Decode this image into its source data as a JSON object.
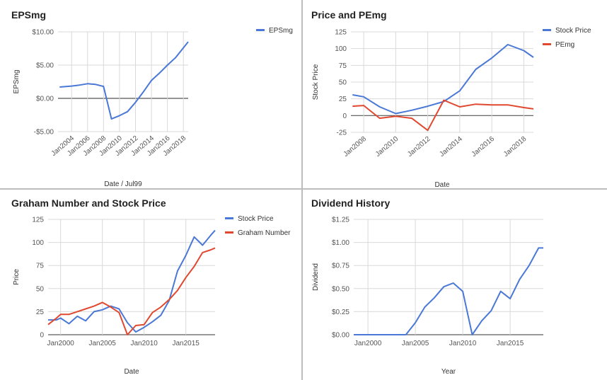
{
  "colors": {
    "blue": "#4a78d6",
    "red": "#e0482f",
    "grid": "#d9d9d9",
    "zero": "#555555"
  },
  "chart_data": [
    {
      "id": "eps",
      "type": "line",
      "title": "EPSmg",
      "xlabel": "Date / Jul99",
      "ylabel": "EPSmg",
      "xlim": [
        2002.3,
        2018.6
      ],
      "ylim": [
        -5,
        10
      ],
      "yticks": [
        {
          "v": 10,
          "label": "$10.00"
        },
        {
          "v": 5,
          "label": "$5.00"
        },
        {
          "v": 0,
          "label": "$0.00"
        },
        {
          "v": -5,
          "label": "-$5.00"
        }
      ],
      "xticks": [
        {
          "v": 2004,
          "label": "Jan2004"
        },
        {
          "v": 2006,
          "label": "Jan2006"
        },
        {
          "v": 2008,
          "label": "Jan2008"
        },
        {
          "v": 2010,
          "label": "Jan2010"
        },
        {
          "v": 2012,
          "label": "Jan2012"
        },
        {
          "v": 2014,
          "label": "Jan2014"
        },
        {
          "v": 2016,
          "label": "Jan2016"
        },
        {
          "v": 2018,
          "label": "Jan2018"
        }
      ],
      "tick_rotate": true,
      "zero_line": true,
      "legend": "right",
      "series": [
        {
          "name": "EPSmg",
          "color": "#4a78d6",
          "x": [
            2002.5,
            2004,
            2005,
            2006,
            2007,
            2008,
            2009,
            2010,
            2011,
            2012,
            2013,
            2014,
            2015,
            2016,
            2017,
            2018,
            2018.6
          ],
          "y": [
            1.7,
            1.85,
            2.0,
            2.2,
            2.1,
            1.8,
            -3.1,
            -2.6,
            -2.0,
            -0.6,
            1.0,
            2.7,
            3.8,
            5.0,
            6.1,
            7.6,
            8.5
          ]
        }
      ]
    },
    {
      "id": "pe",
      "type": "line",
      "title": "Price and PEmg",
      "xlabel": "Date",
      "ylabel": "Stock Price",
      "xlim": [
        2007.2,
        2018.6
      ],
      "ylim": [
        -25,
        125
      ],
      "yticks": [
        {
          "v": 125,
          "label": "125"
        },
        {
          "v": 100,
          "label": "100"
        },
        {
          "v": 75,
          "label": "75"
        },
        {
          "v": 50,
          "label": "50"
        },
        {
          "v": 25,
          "label": "25"
        },
        {
          "v": 0,
          "label": "0"
        },
        {
          "v": -25,
          "label": "-25"
        }
      ],
      "xticks": [
        {
          "v": 2008,
          "label": "Jan2008"
        },
        {
          "v": 2010,
          "label": "Jan2010"
        },
        {
          "v": 2012,
          "label": "Jan2012"
        },
        {
          "v": 2014,
          "label": "Jan2014"
        },
        {
          "v": 2016,
          "label": "Jan2016"
        },
        {
          "v": 2018,
          "label": "Jan2018"
        }
      ],
      "tick_rotate": true,
      "zero_line": true,
      "legend": "right",
      "series": [
        {
          "name": "Stock Price",
          "color": "#4a78d6",
          "x": [
            2007.3,
            2008,
            2009,
            2010,
            2011,
            2012,
            2013,
            2014,
            2015,
            2016,
            2017,
            2018,
            2018.6
          ],
          "y": [
            31,
            28,
            13,
            3,
            8,
            14,
            21,
            37,
            69,
            86,
            106,
            97,
            87
          ]
        },
        {
          "name": "PEmg",
          "color": "#e0482f",
          "x": [
            2007.3,
            2008,
            2009,
            2010,
            2011,
            2012,
            2013,
            2014,
            2015,
            2016,
            2017,
            2018,
            2018.6
          ],
          "y": [
            14,
            15,
            -4,
            -1,
            -4,
            -22,
            23,
            13,
            17,
            16,
            16,
            12,
            10
          ]
        }
      ]
    },
    {
      "id": "graham",
      "type": "line",
      "title": "Graham Number and Stock Price",
      "xlabel": "Date",
      "ylabel": "Price",
      "xlim": [
        1998.5,
        2018.5
      ],
      "ylim": [
        0,
        125
      ],
      "yticks": [
        {
          "v": 125,
          "label": "125"
        },
        {
          "v": 100,
          "label": "100"
        },
        {
          "v": 75,
          "label": "75"
        },
        {
          "v": 50,
          "label": "50"
        },
        {
          "v": 25,
          "label": "25"
        },
        {
          "v": 0,
          "label": "0"
        }
      ],
      "xticks": [
        {
          "v": 2000,
          "label": "Jan2000"
        },
        {
          "v": 2005,
          "label": "Jan2005"
        },
        {
          "v": 2010,
          "label": "Jan2010"
        },
        {
          "v": 2015,
          "label": "Jan2015"
        }
      ],
      "tick_rotate": false,
      "zero_line": false,
      "legend": "right",
      "series": [
        {
          "name": "Stock Price",
          "color": "#4a78d6",
          "x": [
            1998.5,
            1999.5,
            2000,
            2001,
            2002,
            2003,
            2004,
            2005,
            2006,
            2007,
            2008,
            2009,
            2010,
            2011,
            2012,
            2013,
            2014,
            2015,
            2016,
            2017,
            2018,
            2018.5
          ],
          "y": [
            16,
            16,
            18,
            12,
            20,
            15,
            25,
            27,
            31,
            28,
            13,
            3,
            8,
            14,
            21,
            37,
            69,
            86,
            106,
            97,
            108,
            113
          ]
        },
        {
          "name": "Graham Number",
          "color": "#e0482f",
          "x": [
            1998.5,
            1999.5,
            2000,
            2001,
            2002,
            2003,
            2004,
            2005,
            2006,
            2007,
            2008,
            2009,
            2010,
            2011,
            2012,
            2013,
            2014,
            2015,
            2016,
            2017,
            2018,
            2018.5
          ],
          "y": [
            11,
            18,
            22,
            22,
            25,
            28,
            31,
            35,
            30,
            24,
            0,
            10,
            11,
            24,
            30,
            38,
            48,
            62,
            74,
            89,
            92,
            94
          ]
        }
      ]
    },
    {
      "id": "dividend",
      "type": "line",
      "title": "Dividend History",
      "xlabel": "Year",
      "ylabel": "Dividend",
      "xlim": [
        1998.5,
        2018.5
      ],
      "ylim": [
        0,
        1.25
      ],
      "yticks": [
        {
          "v": 1.25,
          "label": "$1.25"
        },
        {
          "v": 1.0,
          "label": "$1.00"
        },
        {
          "v": 0.75,
          "label": "$0.75"
        },
        {
          "v": 0.5,
          "label": "$0.50"
        },
        {
          "v": 0.25,
          "label": "$0.25"
        },
        {
          "v": 0,
          "label": "$0.00"
        }
      ],
      "xticks": [
        {
          "v": 2000,
          "label": "Jan2000"
        },
        {
          "v": 2005,
          "label": "Jan2005"
        },
        {
          "v": 2010,
          "label": "Jan2010"
        },
        {
          "v": 2015,
          "label": "Jan2015"
        }
      ],
      "tick_rotate": false,
      "zero_line": false,
      "legend": "none",
      "series": [
        {
          "name": "Dividend",
          "color": "#4a78d6",
          "x": [
            1998.5,
            2000,
            2001,
            2002,
            2003,
            2004,
            2005,
            2006,
            2007,
            2008,
            2009,
            2010,
            2011,
            2012,
            2013,
            2014,
            2015,
            2016,
            2017,
            2018,
            2018.5
          ],
          "y": [
            0,
            0,
            0,
            0,
            0,
            0,
            0.13,
            0.3,
            0.4,
            0.52,
            0.56,
            0.47,
            0,
            0.15,
            0.26,
            0.47,
            0.39,
            0.6,
            0.75,
            0.94,
            0.94
          ]
        }
      ]
    }
  ]
}
